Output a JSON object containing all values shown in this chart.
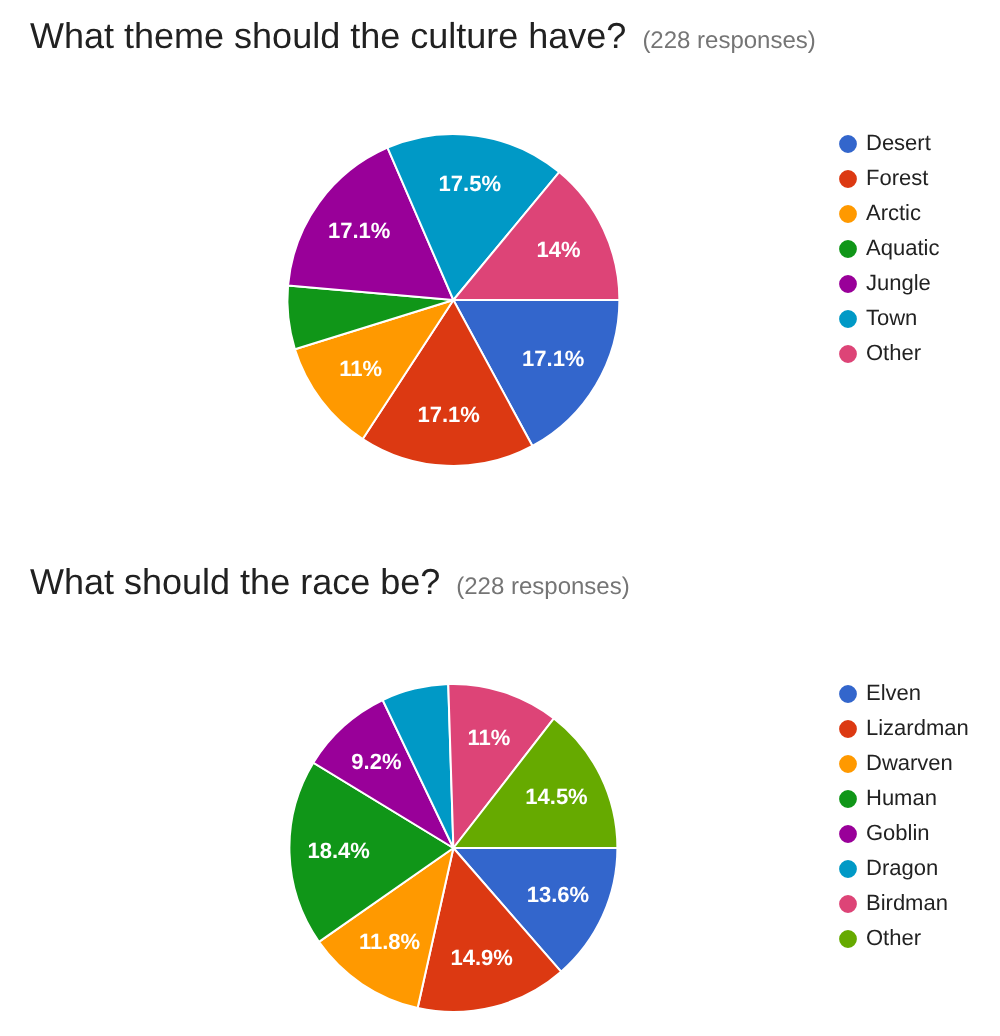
{
  "chart_data": [
    {
      "type": "pie",
      "title": "What theme should the culture have?",
      "subtitle": "(228 responses)",
      "categories": [
        "Desert",
        "Forest",
        "Arctic",
        "Aquatic",
        "Jungle",
        "Town",
        "Other"
      ],
      "values": [
        17.1,
        17.1,
        11,
        6.2,
        17.1,
        17.5,
        14
      ],
      "colors": [
        "#3366cc",
        "#dc3912",
        "#ff9900",
        "#109618",
        "#990099",
        "#0099c6",
        "#dd4477"
      ],
      "value_labels": [
        "17.1%",
        "17.1%",
        "11%",
        null,
        "17.1%",
        "17.5%",
        "14%"
      ],
      "legend": "right"
    },
    {
      "type": "pie",
      "title": "What should the race be?",
      "subtitle": "(228 responses)",
      "categories": [
        "Elven",
        "Lizardman",
        "Dwarven",
        "Human",
        "Goblin",
        "Dragon",
        "Birdman",
        "Other"
      ],
      "values": [
        13.6,
        14.9,
        11.8,
        18.4,
        9.2,
        6.6,
        11,
        14.5
      ],
      "colors": [
        "#3366cc",
        "#dc3912",
        "#ff9900",
        "#109618",
        "#990099",
        "#0099c6",
        "#dd4477",
        "#66aa00"
      ],
      "value_labels": [
        "13.6%",
        "14.9%",
        "11.8%",
        "18.4%",
        "9.2%",
        null,
        "11%",
        "14.5%"
      ],
      "legend": "right"
    }
  ]
}
